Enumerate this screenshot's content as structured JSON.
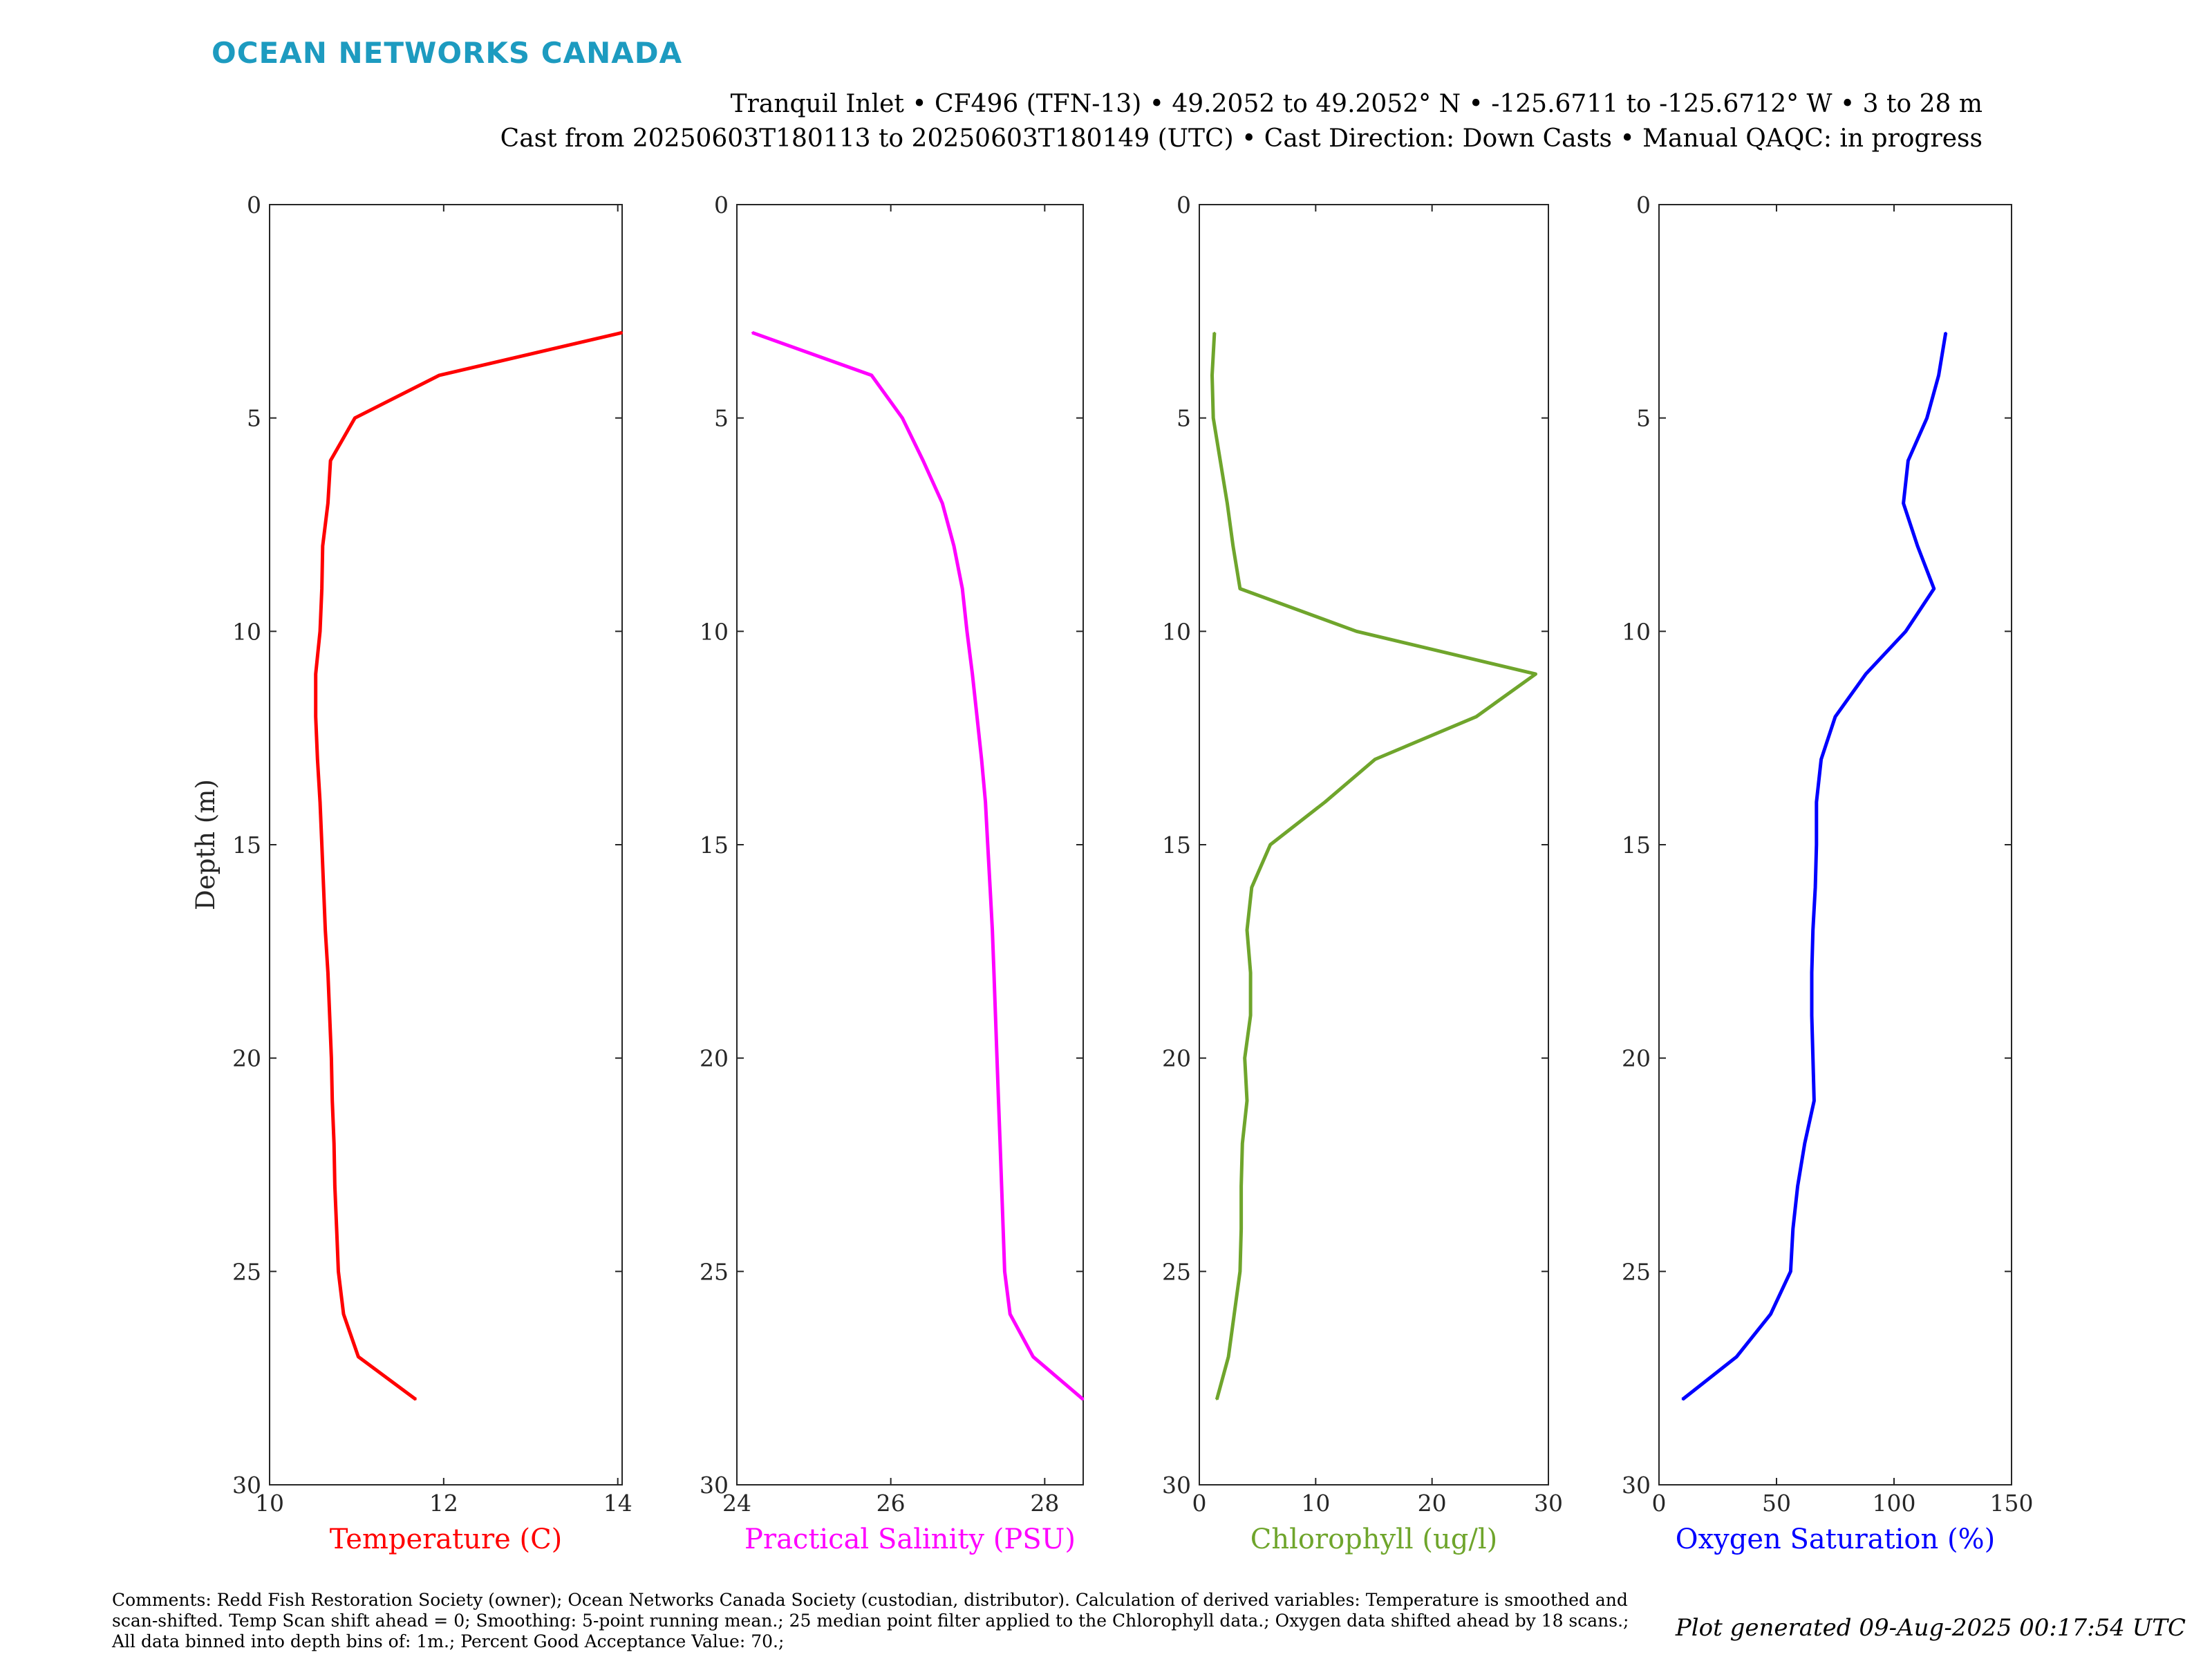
{
  "header": {
    "brand": "OCEAN NETWORKS CANADA",
    "title_line1": "Tranquil Inlet • CF496 (TFN-13) • 49.2052 to 49.2052° N • -125.6711 to -125.6712° W • 3 to 28 m",
    "title_line2": "Cast from 20250603T180113 to 20250603T180149 (UTC) • Cast Direction: Down Casts • Manual QAQC: in progress"
  },
  "footer": {
    "comments": "Comments: Redd Fish Restoration Society (owner); Ocean Networks Canada Society (custodian, distributor). Calculation of derived variables: Temperature is smoothed and scan-shifted. Temp Scan shift ahead = 0; Smoothing: 5-point running mean.; 25 median point filter applied to the Chlorophyll data.; Oxygen data shifted ahead by 18 scans.; All data binned into depth bins of: 1m.; Percent Good Acceptance Value: 70.;",
    "generated": "Plot generated 09-Aug-2025 00:17:54 UTC"
  },
  "chart_data": [
    {
      "type": "line",
      "xlabel": "Temperature (C)",
      "ylabel": "Depth (m)",
      "color": "#ff0000",
      "xlim": [
        10,
        14.05
      ],
      "ylim": [
        0,
        30
      ],
      "y_reversed": true,
      "xticks": [
        10,
        12,
        14
      ],
      "yticks": [
        0,
        5,
        10,
        15,
        20,
        25,
        30
      ],
      "depth": [
        3,
        4,
        5,
        6,
        7,
        8,
        9,
        10,
        11,
        12,
        13,
        14,
        15,
        16,
        17,
        18,
        19,
        20,
        21,
        22,
        23,
        24,
        25,
        26,
        27,
        28
      ],
      "values": [
        14.05,
        11.95,
        10.98,
        10.7,
        10.67,
        10.61,
        10.6,
        10.58,
        10.53,
        10.53,
        10.55,
        10.58,
        10.6,
        10.62,
        10.64,
        10.67,
        10.69,
        10.71,
        10.72,
        10.74,
        10.75,
        10.77,
        10.79,
        10.85,
        11.02,
        11.68
      ]
    },
    {
      "type": "line",
      "xlabel": "Practical Salinity (PSU)",
      "ylabel": "",
      "color": "#ff00ff",
      "xlim": [
        24,
        28.5
      ],
      "ylim": [
        0,
        30
      ],
      "y_reversed": true,
      "xticks": [
        24,
        26,
        28
      ],
      "yticks": [
        0,
        5,
        10,
        15,
        20,
        25,
        30
      ],
      "depth": [
        3,
        4,
        5,
        6,
        7,
        8,
        9,
        10,
        11,
        12,
        13,
        14,
        15,
        16,
        17,
        18,
        19,
        20,
        21,
        22,
        23,
        24,
        25,
        26,
        27,
        28
      ],
      "values": [
        24.2,
        25.75,
        26.15,
        26.42,
        26.67,
        26.82,
        26.93,
        26.99,
        27.06,
        27.12,
        27.18,
        27.23,
        27.26,
        27.29,
        27.32,
        27.34,
        27.36,
        27.38,
        27.4,
        27.42,
        27.44,
        27.46,
        27.48,
        27.55,
        27.85,
        28.5
      ]
    },
    {
      "type": "line",
      "xlabel": "Chlorophyll (ug/l)",
      "ylabel": "",
      "color": "#6fa52c",
      "xlim": [
        0,
        30
      ],
      "ylim": [
        0,
        30
      ],
      "y_reversed": true,
      "xticks": [
        0,
        10,
        20,
        30
      ],
      "yticks": [
        0,
        5,
        10,
        15,
        20,
        25,
        30
      ],
      "depth": [
        3,
        4,
        5,
        6,
        7,
        8,
        9,
        10,
        11,
        12,
        13,
        14,
        15,
        16,
        17,
        18,
        19,
        20,
        21,
        22,
        23,
        24,
        25,
        26,
        27,
        28
      ],
      "values": [
        1.3,
        1.1,
        1.2,
        1.8,
        2.4,
        2.9,
        3.5,
        13.5,
        28.9,
        23.8,
        15.1,
        10.8,
        6.1,
        4.5,
        4.1,
        4.4,
        4.4,
        3.9,
        4.1,
        3.7,
        3.6,
        3.6,
        3.5,
        3.0,
        2.5,
        1.5
      ]
    },
    {
      "type": "line",
      "xlabel": "Oxygen Saturation (%)",
      "ylabel": "",
      "color": "#0000ff",
      "xlim": [
        0,
        150
      ],
      "ylim": [
        0,
        30
      ],
      "y_reversed": true,
      "xticks": [
        0,
        50,
        100,
        150
      ],
      "yticks": [
        0,
        5,
        10,
        15,
        20,
        25,
        30
      ],
      "depth": [
        3,
        4,
        5,
        6,
        7,
        8,
        9,
        10,
        11,
        12,
        13,
        14,
        15,
        16,
        17,
        18,
        19,
        20,
        21,
        22,
        23,
        24,
        25,
        26,
        27,
        28
      ],
      "values": [
        122,
        119,
        114,
        106,
        104,
        110,
        117,
        105,
        88,
        75,
        69,
        67,
        67,
        66.5,
        65.5,
        65,
        65,
        65.5,
        66,
        62,
        59,
        57,
        56,
        47.5,
        33,
        10
      ]
    }
  ]
}
